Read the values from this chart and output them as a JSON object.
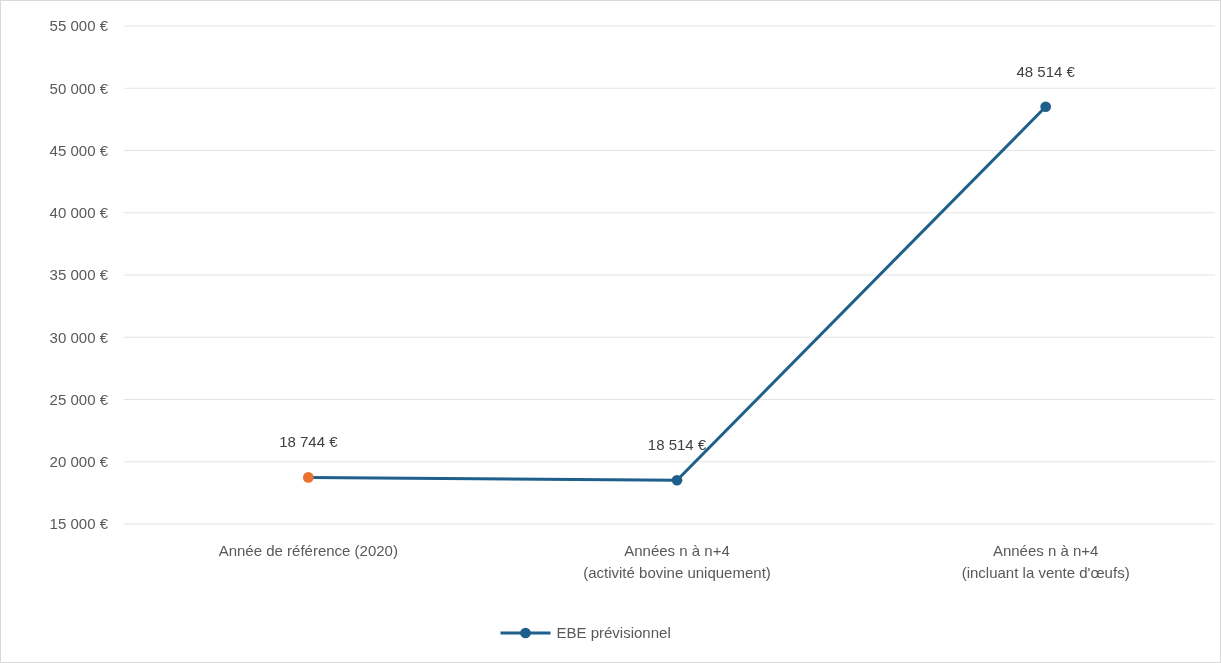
{
  "chart_data": {
    "type": "line",
    "categories": [
      "Année de référence (2020)",
      "Années n à  n+4\n(activité bovine uniquement)",
      "Années n à  n+4\n(incluant la vente d'œufs)"
    ],
    "series": [
      {
        "name": "EBE prévisionnel",
        "color": "#1f5f8b",
        "colors": [
          "#e97132",
          "#1f5f8b",
          "#1f5f8b"
        ],
        "values": [
          18744,
          18514,
          48514
        ],
        "value_labels": [
          "18 744 €",
          "18 514 €",
          "48 514 €"
        ]
      }
    ],
    "ylim": [
      15000,
      55000
    ],
    "yticks": [
      {
        "value": 15000,
        "label": "15 000 €"
      },
      {
        "value": 20000,
        "label": "20 000 €"
      },
      {
        "value": 25000,
        "label": "25 000 €"
      },
      {
        "value": 30000,
        "label": "30 000 €"
      },
      {
        "value": 35000,
        "label": "35 000 €"
      },
      {
        "value": 40000,
        "label": "40 000 €"
      },
      {
        "value": 45000,
        "label": "45 000 €"
      },
      {
        "value": 50000,
        "label": "50 000 €"
      },
      {
        "value": 55000,
        "label": "55 000 €"
      }
    ],
    "grid": "y",
    "legend": "bottom",
    "marker": "circle",
    "line_style": "solid"
  }
}
